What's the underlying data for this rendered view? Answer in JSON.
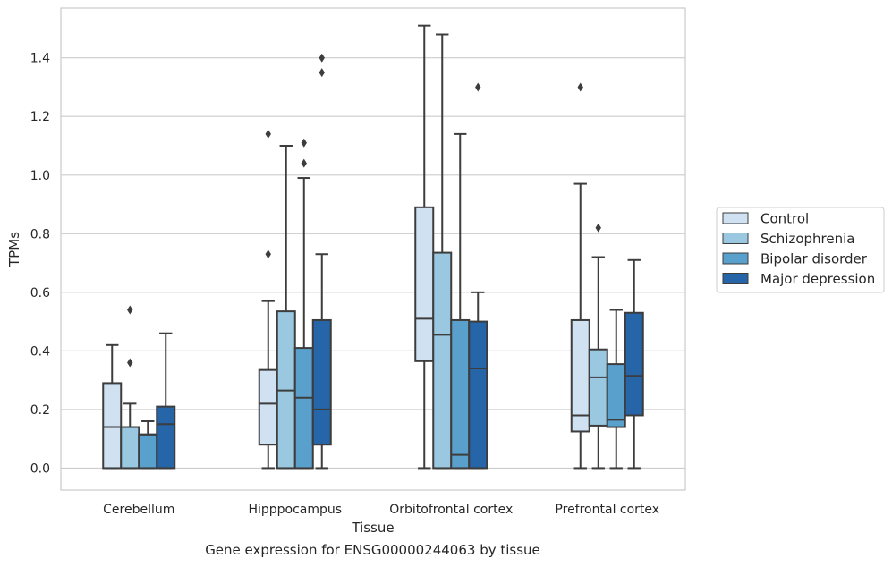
{
  "caption": "Gene expression for ENSG00000244063 by tissue",
  "chart_data": {
    "type": "boxplot",
    "xlabel": "Tissue",
    "ylabel": "TPMs",
    "ylim": [
      -0.075,
      1.57
    ],
    "yticks": [
      0.0,
      0.2,
      0.4,
      0.6,
      0.8,
      1.0,
      1.2,
      1.4
    ],
    "ytick_labels": [
      "0.0",
      "0.2",
      "0.4",
      "0.6",
      "0.8",
      "1.0",
      "1.2",
      "1.4"
    ],
    "grid": true,
    "legend_position": "right",
    "categories": [
      "Cerebellum",
      "Hipppocampus",
      "Orbitofrontal cortex",
      "Prefrontal cortex"
    ],
    "series": [
      {
        "name": "Control",
        "color": "#d0e1f2",
        "boxes": [
          {
            "whisker_low": 0.0,
            "q1": 0.0,
            "median": 0.14,
            "q3": 0.29,
            "whisker_high": 0.42,
            "outliers": []
          },
          {
            "whisker_low": 0.0,
            "q1": 0.08,
            "median": 0.22,
            "q3": 0.335,
            "whisker_high": 0.57,
            "outliers": [
              0.73,
              1.14
            ]
          },
          {
            "whisker_low": 0.0,
            "q1": 0.365,
            "median": 0.51,
            "q3": 0.89,
            "whisker_high": 1.51,
            "outliers": []
          },
          {
            "whisker_low": 0.0,
            "q1": 0.125,
            "median": 0.18,
            "q3": 0.505,
            "whisker_high": 0.97,
            "outliers": [
              1.3
            ]
          }
        ]
      },
      {
        "name": "Schizophrenia",
        "color": "#9ac8e0",
        "boxes": [
          {
            "whisker_low": 0.0,
            "q1": 0.0,
            "median": 0.14,
            "q3": 0.14,
            "whisker_high": 0.22,
            "outliers": [
              0.36,
              0.54
            ]
          },
          {
            "whisker_low": 0.0,
            "q1": 0.0,
            "median": 0.265,
            "q3": 0.535,
            "whisker_high": 1.1,
            "outliers": []
          },
          {
            "whisker_low": 0.0,
            "q1": 0.0,
            "median": 0.455,
            "q3": 0.735,
            "whisker_high": 1.48,
            "outliers": []
          },
          {
            "whisker_low": 0.0,
            "q1": 0.145,
            "median": 0.31,
            "q3": 0.405,
            "whisker_high": 0.72,
            "outliers": [
              0.82
            ]
          }
        ]
      },
      {
        "name": "Bipolar disorder",
        "color": "#5aa0cd",
        "boxes": [
          {
            "whisker_low": 0.0,
            "q1": 0.0,
            "median": 0.115,
            "q3": 0.115,
            "whisker_high": 0.16,
            "outliers": []
          },
          {
            "whisker_low": 0.0,
            "q1": 0.0,
            "median": 0.24,
            "q3": 0.41,
            "whisker_high": 0.99,
            "outliers": [
              1.04,
              1.11
            ]
          },
          {
            "whisker_low": 0.0,
            "q1": 0.0,
            "median": 0.045,
            "q3": 0.505,
            "whisker_high": 1.14,
            "outliers": []
          },
          {
            "whisker_low": 0.0,
            "q1": 0.14,
            "median": 0.165,
            "q3": 0.355,
            "whisker_high": 0.54,
            "outliers": []
          }
        ]
      },
      {
        "name": "Major depression",
        "color": "#2565a8",
        "boxes": [
          {
            "whisker_low": 0.0,
            "q1": 0.0,
            "median": 0.15,
            "q3": 0.21,
            "whisker_high": 0.46,
            "outliers": []
          },
          {
            "whisker_low": 0.0,
            "q1": 0.08,
            "median": 0.2,
            "q3": 0.505,
            "whisker_high": 0.73,
            "outliers": [
              1.35,
              1.4
            ]
          },
          {
            "whisker_low": 0.0,
            "q1": 0.0,
            "median": 0.34,
            "q3": 0.5,
            "whisker_high": 0.6,
            "outliers": [
              1.3
            ]
          },
          {
            "whisker_low": 0.0,
            "q1": 0.18,
            "median": 0.315,
            "q3": 0.53,
            "whisker_high": 0.71,
            "outliers": []
          }
        ]
      }
    ]
  }
}
